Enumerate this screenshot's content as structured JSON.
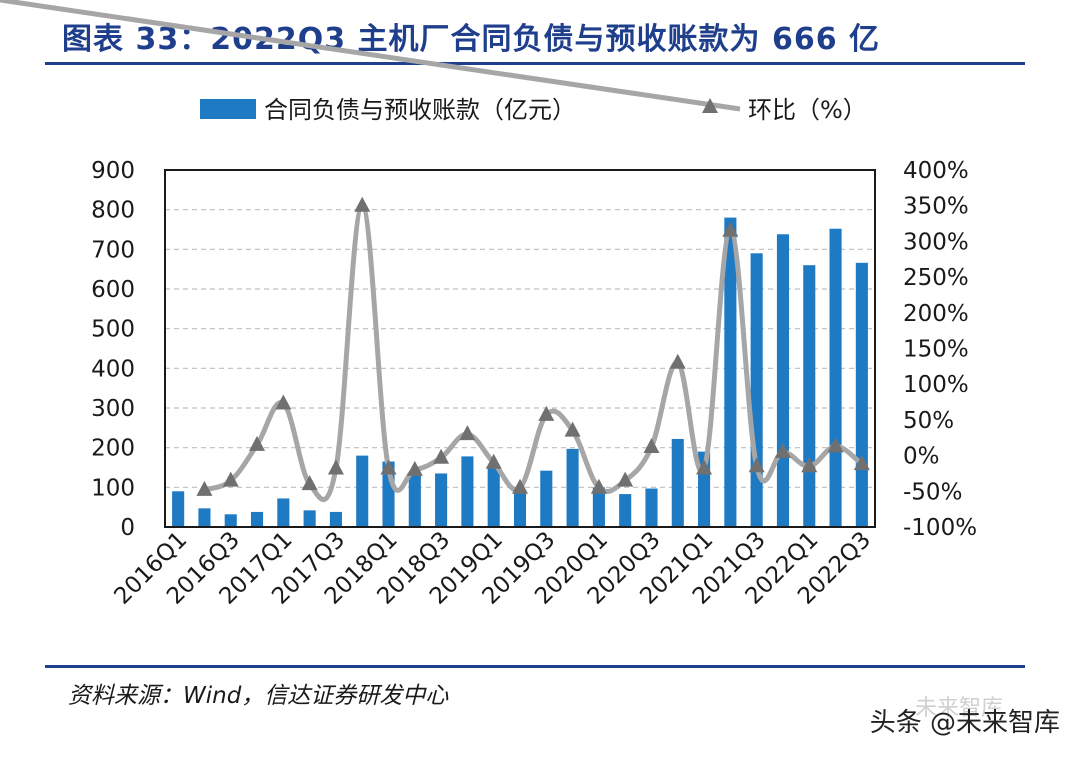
{
  "header": {
    "title": "图表 33：2022Q3 主机厂合同负债与预收账款为 666 亿"
  },
  "footer": {
    "source": "资料来源：Wind，信达证券研发中心",
    "watermark": "头条 @未来智库",
    "watermark_faded": "未来智库"
  },
  "chart_data": {
    "type": "bar",
    "title": "",
    "categories": [
      "2016Q1",
      "2016Q2",
      "2016Q3",
      "2016Q4",
      "2017Q1",
      "2017Q2",
      "2017Q3",
      "2017Q4",
      "2018Q1",
      "2018Q2",
      "2018Q3",
      "2018Q4",
      "2019Q1",
      "2019Q2",
      "2019Q3",
      "2019Q4",
      "2020Q1",
      "2020Q2",
      "2020Q3",
      "2020Q4",
      "2021Q1",
      "2021Q2",
      "2021Q3",
      "2021Q4",
      "2022Q1",
      "2022Q2",
      "2022Q3"
    ],
    "x_tick_labels": [
      "2016Q1",
      "2016Q3",
      "2017Q1",
      "2017Q3",
      "2018Q1",
      "2018Q3",
      "2019Q1",
      "2019Q3",
      "2020Q1",
      "2020Q3",
      "2021Q1",
      "2021Q3",
      "2022Q1",
      "2022Q3"
    ],
    "y_tick_labels": [
      "900",
      "800",
      "700",
      "600",
      "500",
      "400",
      "300",
      "200",
      "100",
      "0"
    ],
    "y2_tick_labels": [
      "400%",
      "350%",
      "300%",
      "250%",
      "200%",
      "150%",
      "100%",
      "50%",
      "0%",
      "-50%",
      "-100%"
    ],
    "ylim": [
      0,
      900
    ],
    "y2lim": [
      -100,
      400
    ],
    "series": [
      {
        "name": "合同负债与预收账款（亿元）",
        "type": "bar",
        "axis": "left",
        "color": "#1f7ac4",
        "values": [
          90,
          47,
          32,
          38,
          72,
          42,
          38,
          180,
          165,
          140,
          135,
          178,
          150,
          95,
          142,
          197,
          100,
          83,
          97,
          222,
          190,
          780,
          690,
          738,
          660,
          752,
          666
        ]
      },
      {
        "name": "环比（%）",
        "type": "line",
        "axis": "right",
        "color": "#a6a6a6",
        "marker": "triangle",
        "values": [
          null,
          -48,
          -35,
          15,
          73,
          -40,
          -18,
          350,
          -18,
          -20,
          -3,
          30,
          -10,
          -45,
          57,
          35,
          -45,
          -35,
          12,
          130,
          -18,
          315,
          -15,
          5,
          -15,
          13,
          -12
        ]
      }
    ],
    "grid": "horizontal dashed",
    "legend": "top-center"
  }
}
